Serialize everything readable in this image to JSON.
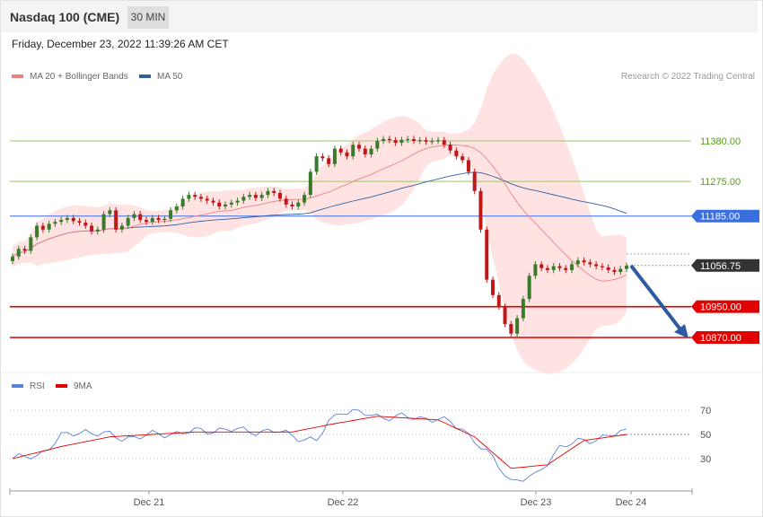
{
  "header": {
    "title": "Nasdaq 100 (CME)",
    "timeframe": "30 MIN"
  },
  "datetime": "Friday, December 23, 2022 11:39:26 AM CET",
  "credit": "Research © 2022 Trading Central",
  "colors": {
    "ma20": "#f08080",
    "ma50": "#3060a0",
    "resistance": "#9bc46a",
    "pivot": "#3a6fe0",
    "support": "#e00000",
    "current": "#333333",
    "bull": "#3a7a2a",
    "bear": "#c01818",
    "band": "#ffe3e3",
    "rsi": "#5b82d6",
    "rsi_ma": "#e00000",
    "arrow": "#2f5aa0"
  },
  "chart_data": [
    {
      "type": "candlestick",
      "legend": [
        {
          "name": "MA 20 + Bollinger Bands",
          "color": "#f08080"
        },
        {
          "name": "MA 50",
          "color": "#3060a0"
        }
      ],
      "ylim": [
        10770,
        11480
      ],
      "levels": [
        {
          "value": 11380.0,
          "label": "11380.00",
          "role": "resistance"
        },
        {
          "value": 11275.0,
          "label": "11275.00",
          "role": "resistance"
        },
        {
          "value": 11185.0,
          "label": "11185.00",
          "role": "pivot"
        },
        {
          "value": 11056.75,
          "label": "11056.75",
          "role": "current"
        },
        {
          "value": 10950.0,
          "label": "10950.00",
          "role": "support"
        },
        {
          "value": 10870.0,
          "label": "10870.00",
          "role": "support"
        }
      ],
      "xticks": [
        "Dec 21",
        "Dec 22",
        "Dec 23",
        "Dec 24"
      ],
      "close": [
        11080,
        11100,
        11095,
        11130,
        11160,
        11150,
        11165,
        11170,
        11175,
        11180,
        11172,
        11168,
        11160,
        11145,
        11150,
        11190,
        11200,
        11150,
        11160,
        11180,
        11190,
        11175,
        11170,
        11180,
        11175,
        11178,
        11200,
        11210,
        11230,
        11240,
        11235,
        11230,
        11225,
        11220,
        11210,
        11215,
        11220,
        11225,
        11235,
        11240,
        11232,
        11240,
        11250,
        11245,
        11230,
        11215,
        11210,
        11220,
        11240,
        11300,
        11340,
        11335,
        11320,
        11360,
        11350,
        11340,
        11370,
        11360,
        11345,
        11360,
        11380,
        11385,
        11382,
        11375,
        11383,
        11385,
        11380,
        11382,
        11378,
        11380,
        11382,
        11370,
        11355,
        11340,
        11330,
        11300,
        11250,
        11150,
        11020,
        10980,
        10950,
        10905,
        10880,
        10920,
        10970,
        11030,
        11060,
        11050,
        11045,
        11055,
        11050,
        11045,
        11060,
        11070,
        11065,
        11060,
        11055,
        11052,
        11045,
        11040,
        11048,
        11056
      ]
    },
    {
      "type": "line",
      "legend": [
        {
          "name": "RSI",
          "color": "#5b82d6"
        },
        {
          "name": "9MA",
          "color": "#e00000"
        }
      ],
      "ylim": [
        10,
        90
      ],
      "yticks": [
        70,
        50,
        30
      ],
      "rsi_anchors": [
        [
          0,
          30
        ],
        [
          4,
          32
        ],
        [
          8,
          48
        ],
        [
          12,
          53
        ],
        [
          18,
          47
        ],
        [
          24,
          50
        ],
        [
          34,
          54
        ],
        [
          44,
          52
        ],
        [
          50,
          44
        ],
        [
          52,
          60
        ],
        [
          54,
          70
        ],
        [
          60,
          65
        ],
        [
          70,
          63
        ],
        [
          74,
          55
        ],
        [
          78,
          35
        ],
        [
          82,
          12
        ],
        [
          86,
          15
        ],
        [
          90,
          40
        ],
        [
          98,
          49
        ],
        [
          101,
          52
        ]
      ],
      "ma9_anchors": [
        [
          0,
          30
        ],
        [
          8,
          40
        ],
        [
          16,
          48
        ],
        [
          30,
          52
        ],
        [
          46,
          52
        ],
        [
          52,
          58
        ],
        [
          60,
          65
        ],
        [
          70,
          62
        ],
        [
          76,
          48
        ],
        [
          82,
          22
        ],
        [
          88,
          25
        ],
        [
          94,
          45
        ],
        [
          101,
          50
        ]
      ]
    }
  ]
}
